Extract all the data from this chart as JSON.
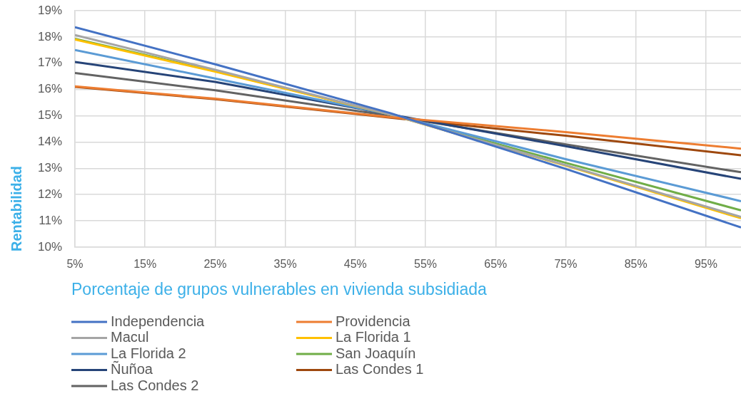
{
  "chart_data": {
    "type": "line",
    "xlabel": "Porcentaje de grupos vulnerables en vivienda subsidiada",
    "ylabel": "Rentabilidad",
    "x": [
      5,
      25,
      50,
      75,
      100
    ],
    "xlim": [
      5,
      100
    ],
    "xticks": [
      {
        "value": 5,
        "label": "5%"
      },
      {
        "value": 15,
        "label": "15%"
      },
      {
        "value": 25,
        "label": "25%"
      },
      {
        "value": 35,
        "label": "35%"
      },
      {
        "value": 45,
        "label": "45%"
      },
      {
        "value": 55,
        "label": "55%"
      },
      {
        "value": 65,
        "label": "65%"
      },
      {
        "value": 75,
        "label": "75%"
      },
      {
        "value": 85,
        "label": "85%"
      },
      {
        "value": 95,
        "label": "95%"
      }
    ],
    "ylim": [
      10,
      19
    ],
    "yticks": [
      {
        "value": 10,
        "label": "10%"
      },
      {
        "value": 11,
        "label": "11%"
      },
      {
        "value": 12,
        "label": "12%"
      },
      {
        "value": 13,
        "label": "13%"
      },
      {
        "value": 14,
        "label": "14%"
      },
      {
        "value": 15,
        "label": "15%"
      },
      {
        "value": 16,
        "label": "16%"
      },
      {
        "value": 17,
        "label": "17%"
      },
      {
        "value": 18,
        "label": "18%"
      },
      {
        "value": 19,
        "label": "19%"
      }
    ],
    "series": [
      {
        "name": "Independencia",
        "color": "#4472c4",
        "values": [
          18.37,
          16.96,
          15.1,
          12.98,
          10.75
        ]
      },
      {
        "name": "Providencia",
        "color": "#ed7d31",
        "values": [
          16.12,
          15.65,
          14.95,
          14.38,
          13.75
        ]
      },
      {
        "name": "Macul",
        "color": "#a5a5a5",
        "values": [
          18.07,
          16.75,
          15.05,
          13.12,
          11.15
        ]
      },
      {
        "name": "La Florida 1",
        "color": "#ffc000",
        "values": [
          17.9,
          16.68,
          15.05,
          13.1,
          11.1
        ]
      },
      {
        "name": "La Florida 2",
        "color": "#5b9bd5",
        "values": [
          17.5,
          16.42,
          15.05,
          13.35,
          11.75
        ]
      },
      {
        "name": "San Joaquín",
        "color": "#70ad47",
        "values": [
          17.93,
          16.7,
          15.05,
          13.21,
          11.4
        ]
      },
      {
        "name": "Ñuñoa",
        "color": "#264478",
        "values": [
          17.05,
          16.29,
          15.05,
          13.84,
          12.6
        ]
      },
      {
        "name": "Las Condes 1",
        "color": "#9e480e",
        "values": [
          16.1,
          15.63,
          14.93,
          14.24,
          13.5
        ]
      },
      {
        "name": "Las Condes 2",
        "color": "#636363",
        "values": [
          16.63,
          15.97,
          15.0,
          13.91,
          12.85
        ]
      }
    ],
    "grid": true,
    "legend": "bottom",
    "marker": "none",
    "line_style": "solid"
  }
}
